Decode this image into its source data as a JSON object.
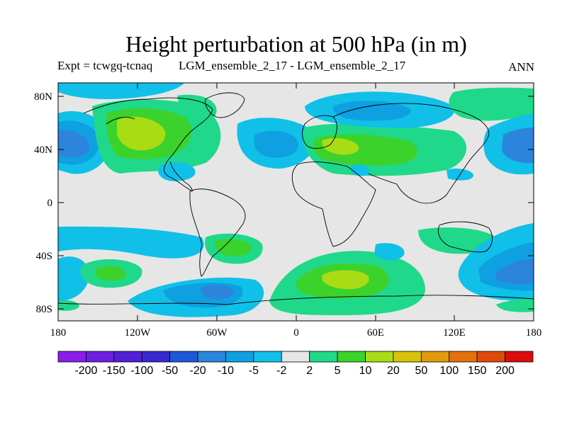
{
  "title": "Height perturbation at 500 hPa (in m)",
  "subtitle_left": "Expt = tcwgq-tcnaq",
  "subtitle_mid": "LGM_ensemble_2_17 - LGM_ensemble_2_17",
  "subtitle_right": "ANN",
  "lat_labels": [
    "80N",
    "40N",
    "0",
    "40S",
    "80S"
  ],
  "lon_labels": [
    "180",
    "120W",
    "60W",
    "0",
    "60E",
    "120E",
    "180"
  ],
  "colorbar": {
    "colors": [
      "#8a1ee8",
      "#6e1fe0",
      "#5220d6",
      "#3a28d0",
      "#1e58d8",
      "#2c84dc",
      "#0ea0e0",
      "#10c0e8",
      "#e6e6e6",
      "#20d88a",
      "#3cd22c",
      "#a8dc14",
      "#d8c20c",
      "#e09a0c",
      "#e2700c",
      "#de4a0c",
      "#dc0c0c"
    ],
    "labels": [
      "-200",
      "-150",
      "-100",
      "-50",
      "-20",
      "-10",
      "-5",
      "-2",
      "2",
      "5",
      "10",
      "20",
      "50",
      "100",
      "150",
      "200"
    ]
  },
  "map": {
    "background_color": "#e6e6e6"
  }
}
